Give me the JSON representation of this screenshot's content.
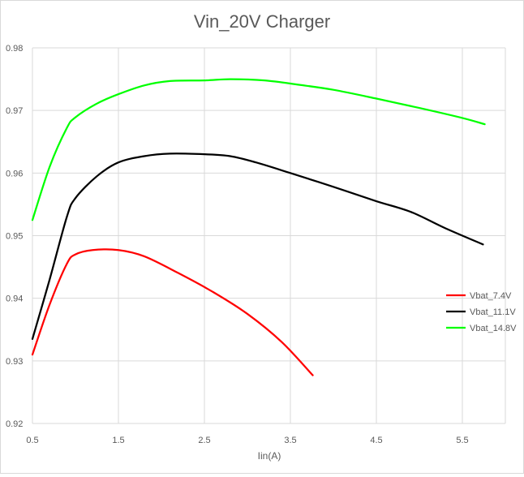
{
  "chart_data": {
    "type": "line",
    "title": "Vin_20V Charger",
    "xlabel": "Iin(A)",
    "ylabel": "",
    "xlim": [
      0.5,
      6.0
    ],
    "ylim": [
      0.92,
      0.98
    ],
    "xticks": [
      "0.5",
      "1.5",
      "2.5",
      "3.5",
      "4.5",
      "5.5"
    ],
    "yticks": [
      "0.92",
      "0.93",
      "0.94",
      "0.95",
      "0.96",
      "0.97",
      "0.98"
    ],
    "grid": "vertical and horizontal",
    "legend_position": "right",
    "series": [
      {
        "name": "Vbat_7.4V",
        "color": "#ff0000",
        "x": [
          0.5,
          0.7,
          0.9,
          1.0,
          1.2,
          1.5,
          1.8,
          2.2,
          2.6,
          3.0,
          3.4,
          3.76
        ],
        "y": [
          0.931,
          0.939,
          0.9455,
          0.947,
          0.9477,
          0.9477,
          0.9467,
          0.944,
          0.941,
          0.9375,
          0.933,
          0.9277
        ]
      },
      {
        "name": "Vbat_11.1V",
        "color": "#000000",
        "x": [
          0.5,
          0.7,
          0.9,
          1.0,
          1.25,
          1.5,
          1.8,
          2.1,
          2.5,
          2.8,
          3.1,
          3.5,
          4.0,
          4.5,
          4.9,
          5.3,
          5.74
        ],
        "y": [
          0.9335,
          0.943,
          0.953,
          0.956,
          0.9595,
          0.9617,
          0.9627,
          0.9631,
          0.963,
          0.9627,
          0.9617,
          0.96,
          0.9578,
          0.9555,
          0.9538,
          0.9512,
          0.9486
        ]
      },
      {
        "name": "Vbat_14.8V",
        "color": "#00ff00",
        "x": [
          0.5,
          0.7,
          0.9,
          1.0,
          1.25,
          1.5,
          1.8,
          2.1,
          2.5,
          2.8,
          3.2,
          3.6,
          4.0,
          4.5,
          5.0,
          5.5,
          5.76
        ],
        "y": [
          0.9525,
          0.961,
          0.9672,
          0.9689,
          0.9711,
          0.9726,
          0.974,
          0.9747,
          0.9748,
          0.975,
          0.9748,
          0.9741,
          0.9733,
          0.9719,
          0.9704,
          0.9688,
          0.9678
        ]
      }
    ]
  }
}
